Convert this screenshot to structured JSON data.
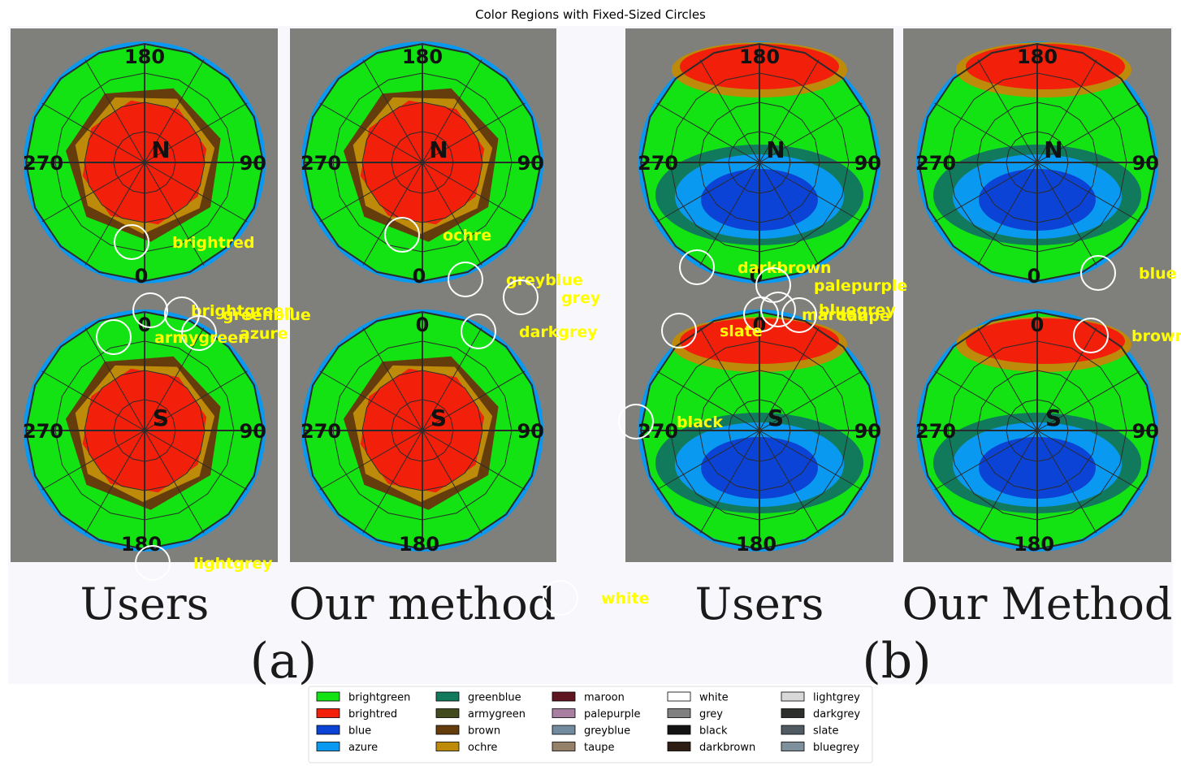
{
  "chart_data": {
    "type": "scatter",
    "title": "Color Regions with Fixed-Sized Circles",
    "background_image": {
      "panel_groups": [
        {
          "caption": "(a)",
          "panels": [
            {
              "label": "Users",
              "hemispheres": [
                {
                  "pole": "N",
                  "angles": [
                    "180",
                    "270",
                    "90",
                    "0"
                  ]
                },
                {
                  "pole": "S",
                  "angles": [
                    "0",
                    "270",
                    "90",
                    "180"
                  ]
                }
              ]
            },
            {
              "label": "Our method",
              "hemispheres": [
                {
                  "pole": "N",
                  "angles": [
                    "180",
                    "270",
                    "90",
                    "0"
                  ]
                },
                {
                  "pole": "S",
                  "angles": [
                    "0",
                    "270",
                    "90",
                    "180"
                  ]
                }
              ]
            }
          ]
        },
        {
          "caption": "(b)",
          "panels": [
            {
              "label": "Users",
              "hemispheres": [
                {
                  "pole": "N",
                  "angles": [
                    "180",
                    "270",
                    "90",
                    "0"
                  ]
                },
                {
                  "pole": "S",
                  "angles": [
                    "0",
                    "270",
                    "90",
                    "180"
                  ]
                }
              ]
            },
            {
              "label": "Our Method",
              "hemispheres": [
                {
                  "pole": "N",
                  "angles": [
                    "180",
                    "270",
                    "90",
                    "0"
                  ]
                },
                {
                  "pole": "S",
                  "angles": [
                    "0",
                    "270",
                    "90",
                    "180"
                  ]
                }
              ]
            }
          ]
        }
      ]
    },
    "annotations": [
      {
        "label": "brightred",
        "circle": [
          162,
          298
        ]
      },
      {
        "label": "brightgreen",
        "circle": [
          185,
          382
        ]
      },
      {
        "label": "greenblue",
        "circle": [
          224,
          387
        ]
      },
      {
        "label": "azure",
        "circle": [
          245,
          410
        ]
      },
      {
        "label": "armygreen",
        "circle": [
          140,
          415
        ]
      },
      {
        "label": "lightgrey",
        "circle": [
          188,
          693
        ]
      },
      {
        "label": "ochre",
        "circle": [
          495,
          289
        ]
      },
      {
        "label": "greyblue",
        "circle": [
          573,
          344
        ]
      },
      {
        "label": "grey",
        "circle": [
          641,
          366
        ]
      },
      {
        "label": "darkgrey",
        "circle": [
          589,
          408
        ]
      },
      {
        "label": "white",
        "circle": [
          690,
          736
        ]
      },
      {
        "label": "darkbrown",
        "circle": [
          858,
          329
        ]
      },
      {
        "label": "palepurple",
        "circle": [
          952,
          351
        ]
      },
      {
        "label": "bluegrey",
        "circle": [
          958,
          381
        ]
      },
      {
        "label": "maroon",
        "circle": [
          937,
          387
        ]
      },
      {
        "label": "taupe",
        "circle": [
          984,
          388
        ]
      },
      {
        "label": "slate",
        "circle": [
          836,
          407
        ]
      },
      {
        "label": "black",
        "circle": [
          783,
          519
        ]
      },
      {
        "label": "blue",
        "circle": [
          1352,
          336
        ]
      },
      {
        "label": "brown",
        "circle": [
          1343,
          413
        ]
      }
    ],
    "legend": {
      "position": "bottom",
      "columns": 5,
      "entries": [
        {
          "label": "brightgreen",
          "color": "#13e313"
        },
        {
          "label": "brightred",
          "color": "#f21f0a"
        },
        {
          "label": "blue",
          "color": "#0a43d6"
        },
        {
          "label": "azure",
          "color": "#0a99f0"
        },
        {
          "label": "greenblue",
          "color": "#127a5c"
        },
        {
          "label": "armygreen",
          "color": "#414b1b"
        },
        {
          "label": "brown",
          "color": "#653d0d"
        },
        {
          "label": "ochre",
          "color": "#bd8a0a"
        },
        {
          "label": "maroon",
          "color": "#5f1620"
        },
        {
          "label": "palepurple",
          "color": "#a87fa1"
        },
        {
          "label": "greyblue",
          "color": "#738b9f"
        },
        {
          "label": "taupe",
          "color": "#95806a"
        },
        {
          "label": "white",
          "color": "#ffffff"
        },
        {
          "label": "grey",
          "color": "#808080"
        },
        {
          "label": "black",
          "color": "#141414"
        },
        {
          "label": "darkbrown",
          "color": "#2d1d12"
        },
        {
          "label": "lightgrey",
          "color": "#d8d8d8"
        },
        {
          "label": "darkgrey",
          "color": "#2d2f2d"
        },
        {
          "label": "slate",
          "color": "#4f5a62"
        },
        {
          "label": "bluegrey",
          "color": "#7d909c"
        }
      ]
    }
  },
  "colors": {
    "annotation_text": "#ffff00",
    "annotation_circle": "#ffffff",
    "panel_background": "#7f7f7c",
    "figure_background": "#f8f8fc"
  }
}
